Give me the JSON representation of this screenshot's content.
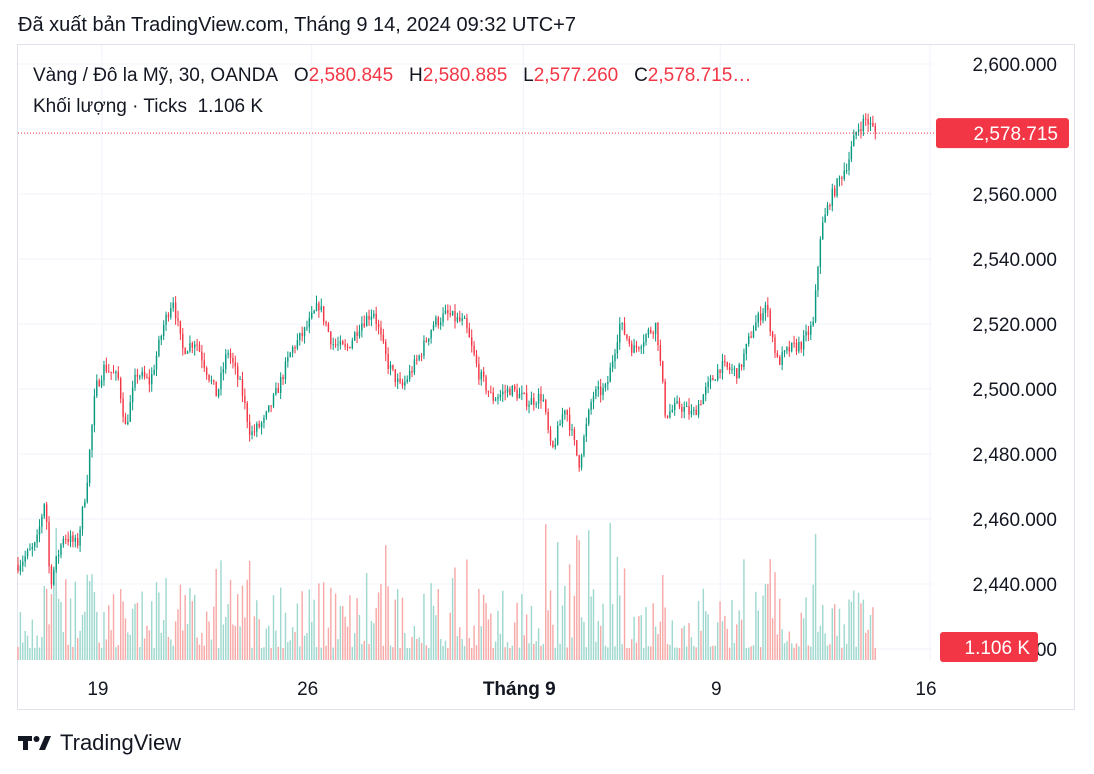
{
  "published": "Đã xuất bản TradingView.com, Tháng 9 14, 2024 09:32 UTC+7",
  "legend": {
    "symbol": "Vàng / Đô la Mỹ, 30, OANDA",
    "o_label": "O",
    "o_value": "2,580.845",
    "h_label": "H",
    "h_value": "2,580.885",
    "l_label": "L",
    "l_value": "2,577.260",
    "c_label": "C",
    "c_value": "2,578.715…",
    "volume_label": "Khối lượng · Ticks",
    "volume_value": "1.106 K"
  },
  "brand": {
    "logo_icon": "tradingview-logo-icon",
    "name": "TradingView"
  },
  "colors": {
    "up": "#089981",
    "down": "#f23645",
    "vol_up": "#9fd8cf",
    "vol_down": "#f7a9a7"
  },
  "chart_data": {
    "type": "candlestick",
    "y_axis": {
      "range": [
        2430,
        2608
      ],
      "ticks": [
        "2,600.000",
        "2,580.000",
        "2,560.000",
        "2,540.000",
        "2,520.000",
        "2,500.000",
        "2,480.000",
        "2,460.000",
        "2,440.000",
        "2,420.000"
      ],
      "tick_values": [
        2600,
        2580,
        2560,
        2540,
        2520,
        2500,
        2480,
        2460,
        2440,
        2420
      ]
    },
    "x_axis": {
      "ticks": [
        {
          "label": "19",
          "bold": false
        },
        {
          "label": "26",
          "bold": false
        },
        {
          "label": "Tháng 9",
          "bold": true
        },
        {
          "label": "9",
          "bold": false
        },
        {
          "label": "16",
          "bold": false
        }
      ],
      "tick_fraction": [
        0.092,
        0.322,
        0.554,
        0.77,
        1.0
      ]
    },
    "last_price": "2,578.715",
    "last_price_value": 2578.715,
    "last_volume": "1.106 K",
    "price_path_keypoints": [
      [
        0.0,
        2446
      ],
      [
        0.02,
        2452
      ],
      [
        0.03,
        2467
      ],
      [
        0.035,
        2440
      ],
      [
        0.05,
        2455
      ],
      [
        0.065,
        2452
      ],
      [
        0.075,
        2470
      ],
      [
        0.085,
        2500
      ],
      [
        0.095,
        2507
      ],
      [
        0.11,
        2503
      ],
      [
        0.118,
        2488
      ],
      [
        0.13,
        2505
      ],
      [
        0.145,
        2502
      ],
      [
        0.16,
        2520
      ],
      [
        0.17,
        2528
      ],
      [
        0.18,
        2512
      ],
      [
        0.195,
        2515
      ],
      [
        0.208,
        2505
      ],
      [
        0.218,
        2498
      ],
      [
        0.23,
        2512
      ],
      [
        0.245,
        2500
      ],
      [
        0.255,
        2486
      ],
      [
        0.27,
        2490
      ],
      [
        0.285,
        2500
      ],
      [
        0.3,
        2512
      ],
      [
        0.315,
        2518
      ],
      [
        0.33,
        2526
      ],
      [
        0.345,
        2514
      ],
      [
        0.36,
        2512
      ],
      [
        0.375,
        2520
      ],
      [
        0.39,
        2524
      ],
      [
        0.405,
        2508
      ],
      [
        0.42,
        2500
      ],
      [
        0.44,
        2510
      ],
      [
        0.455,
        2520
      ],
      [
        0.47,
        2523
      ],
      [
        0.49,
        2520
      ],
      [
        0.505,
        2505
      ],
      [
        0.52,
        2497
      ],
      [
        0.54,
        2500
      ],
      [
        0.56,
        2496
      ],
      [
        0.575,
        2498
      ],
      [
        0.585,
        2480
      ],
      [
        0.6,
        2495
      ],
      [
        0.615,
        2477
      ],
      [
        0.63,
        2498
      ],
      [
        0.645,
        2500
      ],
      [
        0.66,
        2520
      ],
      [
        0.675,
        2512
      ],
      [
        0.69,
        2517
      ],
      [
        0.7,
        2520
      ],
      [
        0.71,
        2492
      ],
      [
        0.725,
        2495
      ],
      [
        0.74,
        2492
      ],
      [
        0.755,
        2500
      ],
      [
        0.77,
        2507
      ],
      [
        0.79,
        2505
      ],
      [
        0.805,
        2518
      ],
      [
        0.82,
        2526
      ],
      [
        0.833,
        2508
      ],
      [
        0.845,
        2512
      ],
      [
        0.86,
        2514
      ],
      [
        0.872,
        2520
      ],
      [
        0.88,
        2548
      ],
      [
        0.89,
        2558
      ],
      [
        0.9,
        2564
      ],
      [
        0.91,
        2570
      ],
      [
        0.92,
        2580
      ],
      [
        0.93,
        2583
      ],
      [
        0.94,
        2579
      ]
    ]
  }
}
